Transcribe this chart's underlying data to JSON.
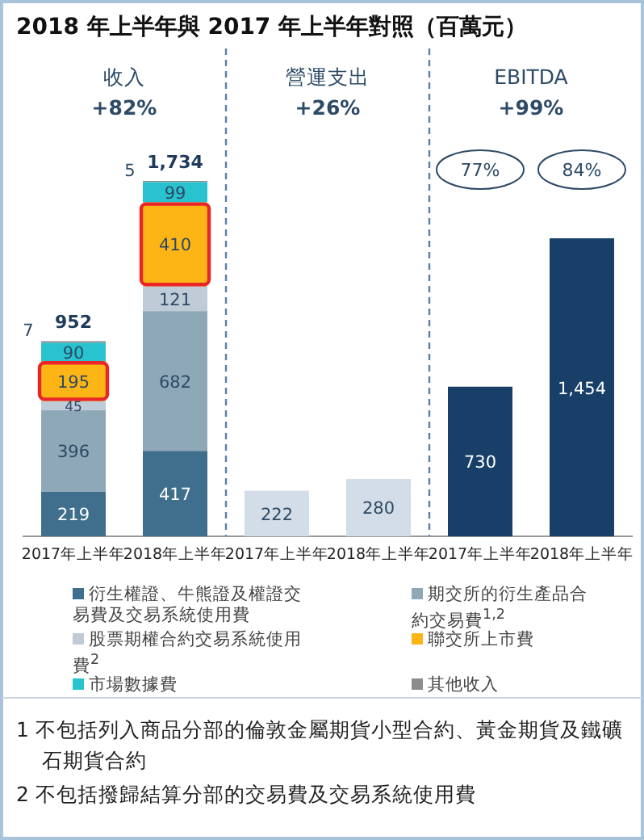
{
  "chart_data": {
    "type": "bar",
    "title": "2018 年上半年與 2017 年上半年對照（百萬元）",
    "stacked": true,
    "legend": "bottom",
    "categories": [
      "2017年上半年",
      "2018年上半年",
      "2017年上半年",
      "2018年上半年",
      "2017年上半年",
      "2018年上半年"
    ],
    "series": [
      {
        "name": "衍生權證、牛熊證及權證交易費及交易系統使用費",
        "color": "#3f6f8c",
        "values": [
          219,
          417,
          null,
          null,
          null,
          null
        ],
        "value_labels": [
          "219",
          "417",
          null,
          null,
          null,
          null
        ]
      },
      {
        "name": "期交所的衍生產品合約交易費$^{1,2}$",
        "color": "#8ea8b8",
        "values": [
          396,
          682,
          null,
          null,
          null,
          null
        ],
        "value_labels": [
          "396",
          "682",
          null,
          null,
          null,
          null
        ]
      },
      {
        "name": "股票期權合約交易系統使用費$^{2}$",
        "color": "#bfcbd6",
        "values": [
          45,
          121,
          null,
          null,
          null,
          null
        ],
        "value_labels": [
          "45",
          "121",
          null,
          null,
          null,
          null
        ]
      },
      {
        "name": "聯交所上市費",
        "color": "#fdb515",
        "values": [
          195,
          410,
          null,
          null,
          null,
          null
        ],
        "value_labels": [
          "195",
          "410",
          null,
          null,
          null,
          null
        ]
      },
      {
        "name": "市場數據費",
        "color": "#29c3cf",
        "values": [
          90,
          99,
          null,
          null,
          null,
          null
        ],
        "value_labels": [
          "90",
          "99",
          null,
          null,
          null,
          null
        ]
      },
      {
        "name": "其他收入",
        "color": "#8c8c8c",
        "values": [
          7,
          5,
          null,
          null,
          null,
          null
        ],
        "value_labels": [
          "7",
          "5",
          null,
          null,
          null,
          null
        ]
      },
      {
        "color": "#d3dde7",
        "values": [
          null,
          null,
          222,
          280,
          null,
          null
        ],
        "value_labels": [
          null,
          null,
          "222",
          "280",
          null,
          null
        ]
      },
      {
        "color": "#173f67",
        "values": [
          null,
          null,
          null,
          null,
          730,
          1454
        ],
        "value_labels": [
          null,
          null,
          null,
          null,
          "730",
          "1,454"
        ]
      }
    ],
    "totals": [
      "952",
      "1,734",
      null,
      null,
      null,
      null
    ],
    "annotations": [
      "收入\n+82%",
      "營運支出\n+26%",
      "EBITDA\n+99%",
      "77%",
      "84%",
      "1  不包括列入商品分部的倫敦金屬期貨小型合約、黃金期貨及鐵礦石期貨合約",
      "2  不包括撥歸結算分部的交易費及交易系統使用費"
    ]
  }
}
